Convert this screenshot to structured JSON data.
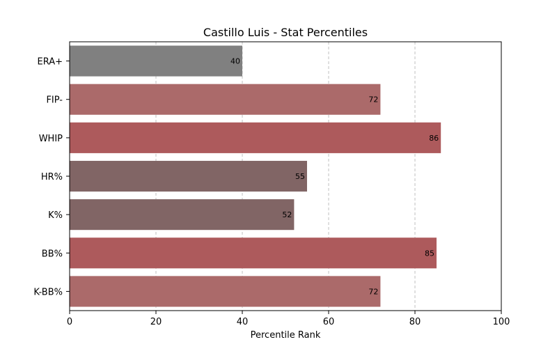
{
  "chart_data": {
    "type": "bar",
    "orientation": "horizontal",
    "title": "Castillo Luis - Stat Percentiles",
    "xlabel": "Percentile Rank",
    "ylabel": "",
    "xlim": [
      0,
      100
    ],
    "xticks": [
      0,
      20,
      40,
      60,
      80,
      100
    ],
    "grid": "x-dashed",
    "categories": [
      "ERA+",
      "FIP-",
      "WHIP",
      "HR%",
      "K%",
      "BB%",
      "K-BB%"
    ],
    "values": [
      40,
      72,
      86,
      55,
      52,
      85,
      72
    ],
    "bar_colors": [
      "#808080",
      "#ab6a6a",
      "#ad5a5c",
      "#816565",
      "#816565",
      "#ad5a5c",
      "#ab6a6a"
    ]
  }
}
